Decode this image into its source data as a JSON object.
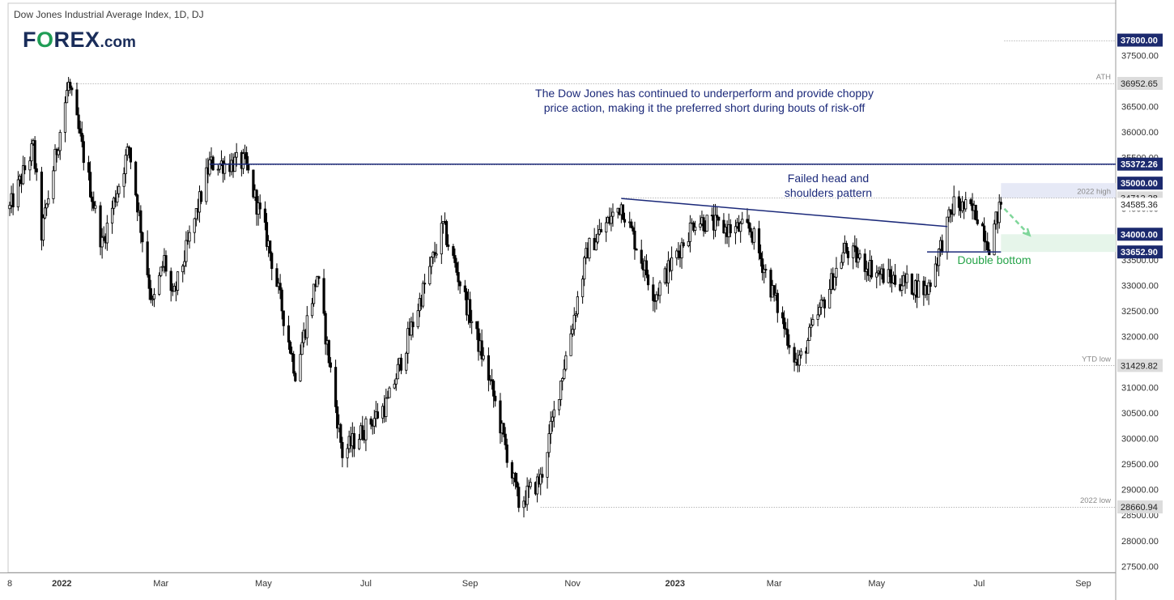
{
  "header": {
    "title": "Dow Jones Industrial Average Index, 1D, DJ",
    "logo_prefix": "F",
    "logo_o": "O",
    "logo_rest": "REX",
    "logo_suffix": ".com"
  },
  "chart_data": {
    "type": "candlestick",
    "title": "Dow Jones Industrial Average Index, 1D, DJ",
    "ylim": [
      26950,
      38300
    ],
    "y_ticks": [
      27500,
      28000,
      28500,
      29000,
      29500,
      30000,
      30500,
      31000,
      31500,
      32000,
      32500,
      33000,
      33500,
      34000,
      34500,
      35000,
      35500,
      36000,
      36500,
      37000,
      37500
    ],
    "x_ticks": [
      {
        "label": "8",
        "date": "2021-12-01",
        "bold": false
      },
      {
        "label": "2022",
        "date": "2022-01-01",
        "bold": true
      },
      {
        "label": "Mar",
        "date": "2022-03-01",
        "bold": false
      },
      {
        "label": "May",
        "date": "2022-05-01",
        "bold": false
      },
      {
        "label": "Jul",
        "date": "2022-07-01",
        "bold": false
      },
      {
        "label": "Sep",
        "date": "2022-09-01",
        "bold": false
      },
      {
        "label": "Nov",
        "date": "2022-11-01",
        "bold": false
      },
      {
        "label": "2023",
        "date": "2023-01-01",
        "bold": true
      },
      {
        "label": "Mar",
        "date": "2023-03-01",
        "bold": false
      },
      {
        "label": "May",
        "date": "2023-05-01",
        "bold": false
      },
      {
        "label": "Jul",
        "date": "2023-07-01",
        "bold": false
      },
      {
        "label": "Sep",
        "date": "2023-09-01",
        "bold": false
      }
    ],
    "price_anchors": [
      [
        "2021-12-01",
        34500
      ],
      [
        "2021-12-15",
        35700
      ],
      [
        "2021-12-20",
        34000
      ],
      [
        "2022-01-05",
        36952.65
      ],
      [
        "2022-01-25",
        33800
      ],
      [
        "2022-02-10",
        35700
      ],
      [
        "2022-02-24",
        32600
      ],
      [
        "2022-03-03",
        33500
      ],
      [
        "2022-03-08",
        32700
      ],
      [
        "2022-03-30",
        35372.26
      ],
      [
        "2022-04-20",
        35400
      ],
      [
        "2022-05-04",
        33800
      ],
      [
        "2022-05-20",
        31300
      ],
      [
        "2022-06-02",
        33200
      ],
      [
        "2022-06-17",
        29700
      ],
      [
        "2022-07-14",
        30700
      ],
      [
        "2022-08-16",
        34150
      ],
      [
        "2022-09-13",
        31100
      ],
      [
        "2022-09-30",
        28725
      ],
      [
        "2022-10-13",
        29200
      ],
      [
        "2022-11-10",
        33700
      ],
      [
        "2022-11-30",
        34589
      ],
      [
        "2022-12-20",
        32800
      ],
      [
        "2023-01-13",
        34300
      ],
      [
        "2023-02-01",
        34100
      ],
      [
        "2023-02-15",
        34100
      ],
      [
        "2023-03-15",
        31429.82
      ],
      [
        "2023-04-12",
        33700
      ],
      [
        "2023-05-04",
        33200
      ],
      [
        "2023-05-31",
        32900
      ],
      [
        "2023-06-16",
        34600
      ],
      [
        "2023-06-30",
        34400
      ],
      [
        "2023-07-07",
        33800
      ],
      [
        "2023-07-14",
        34585.36
      ]
    ],
    "price_labels": [
      {
        "text": "37800.00",
        "value": 37800,
        "style": "dark",
        "extent_from": "2023-07-16"
      },
      {
        "text": "36952.65",
        "value": 36952.65,
        "style": "light",
        "extent_from": "2022-01-05"
      },
      {
        "text": "35372.26",
        "value": 35372.26,
        "style": "dark",
        "extent_from": "2022-03-30"
      },
      {
        "text": "35000.00",
        "value": 35000,
        "style": "dark"
      },
      {
        "text": "34712.28",
        "value": 34712.28,
        "style": "light",
        "extent_from": "2022-11-30"
      },
      {
        "text": "34585.36",
        "value": 34585.36,
        "style": "plain"
      },
      {
        "text": "34000.00",
        "value": 34000,
        "style": "dark"
      },
      {
        "text": "33652.90",
        "value": 33652.9,
        "style": "dark"
      },
      {
        "text": "31429.82",
        "value": 31429.82,
        "style": "light",
        "extent_from": "2023-03-15"
      },
      {
        "text": "28660.94",
        "value": 28660.94,
        "style": "light",
        "extent_from": "2022-10-13"
      }
    ],
    "level_tags": [
      {
        "text": "ATH",
        "value": 36952.65
      },
      {
        "text": "2022 high",
        "value": 34712.28
      },
      {
        "text": "YTD low",
        "value": 31429.82
      },
      {
        "text": "2022 low",
        "value": 28660.94
      }
    ],
    "zones": [
      {
        "name": "2022-high zone",
        "from": 34712.28,
        "to": 35000,
        "start": "2023-07-14",
        "color": "#e6e9f6"
      },
      {
        "name": "target zone",
        "from": 33652.9,
        "to": 34000,
        "start": "2023-07-14",
        "color": "#e6f5ea"
      }
    ],
    "lines": [
      {
        "name": "resistance-line",
        "start": [
          "2022-03-30",
          35372.26
        ],
        "end_value": 35372.26,
        "color": "#1c2a7a"
      },
      {
        "name": "head-shoulders-neckline",
        "start": [
          "2022-11-30",
          34700
        ],
        "end": [
          "2023-06-12",
          34150
        ],
        "color": "#1c2a7a"
      },
      {
        "name": "double-bottom-line",
        "start": [
          "2023-05-31",
          33652.9
        ],
        "end": [
          "2023-07-14",
          33652.9
        ],
        "color": "#1c2a7a"
      }
    ],
    "arrow": {
      "start": [
        "2023-07-16",
        34500
      ],
      "end": [
        "2023-07-31",
        33980
      ],
      "color": "#7fd69a"
    },
    "annotations": [
      {
        "lines": [
          "The Dow Jones has continued to underperform and provide choppy",
          "price action, making it the preferred short during bouts of risk-off"
        ],
        "color": "#1c2a7a"
      },
      {
        "lines": [
          "Failed head and",
          "shoulders pattern"
        ],
        "color": "#1c2a7a"
      },
      {
        "lines": [
          "Double bottom"
        ],
        "color": "#27a44a"
      }
    ]
  }
}
